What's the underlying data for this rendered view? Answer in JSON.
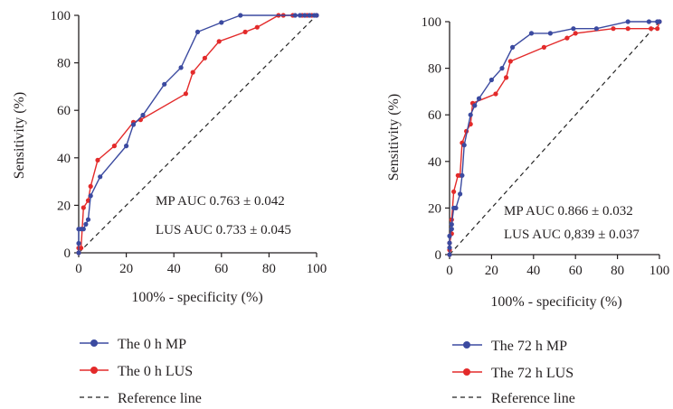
{
  "colors": {
    "mp": "#3b4aa0",
    "lus": "#e32a2a",
    "reference": "#222222",
    "axis": "#231f20"
  },
  "chart_data": [
    {
      "type": "line",
      "xlabel": "100% - specificity (%)",
      "ylabel": "Sensitivity (%)",
      "xlim": [
        0,
        100
      ],
      "ylim": [
        0,
        100
      ],
      "x_ticks": [
        "0",
        "20",
        "40",
        "60",
        "80",
        "100"
      ],
      "y_ticks": [
        "0",
        "20",
        "40",
        "60",
        "80",
        "100"
      ],
      "grid": false,
      "legend_position": "bottom-left",
      "annotations": [
        "MP AUC 0.763 ± 0.042",
        "LUS AUC 0.733 ± 0.045"
      ],
      "series": [
        {
          "name": "The 0 h MP",
          "color": "#3b4aa0",
          "marker": "circle",
          "x": [
            0,
            0,
            0,
            1,
            2,
            3,
            4,
            5,
            9,
            20,
            23,
            27,
            36,
            43,
            50,
            60,
            68,
            91,
            93,
            95,
            97,
            99,
            100
          ],
          "y": [
            0,
            4,
            10,
            10,
            10,
            12,
            14,
            24,
            32,
            45,
            54,
            58,
            71,
            78,
            93,
            97,
            100,
            100,
            100,
            100,
            100,
            100,
            100
          ]
        },
        {
          "name": "The 0 h LUS",
          "color": "#e32a2a",
          "marker": "circle",
          "x": [
            0,
            0,
            1,
            2,
            4,
            5,
            8,
            15,
            23,
            26,
            45,
            48,
            53,
            59,
            70,
            75,
            84,
            86,
            90,
            94,
            96,
            98,
            100
          ],
          "y": [
            0,
            2,
            2,
            19,
            22,
            28,
            39,
            45,
            55,
            56,
            67,
            76,
            82,
            89,
            93,
            95,
            100,
            100,
            100,
            100,
            100,
            100,
            100
          ]
        },
        {
          "name": "Reference line",
          "color": "#222222",
          "style": "dashed",
          "x": [
            0,
            100
          ],
          "y": [
            0,
            100
          ]
        }
      ]
    },
    {
      "type": "line",
      "xlabel": "100% - specificity (%)",
      "ylabel": "Sensitivity (%)",
      "xlim": [
        0,
        100
      ],
      "ylim": [
        0,
        100
      ],
      "x_ticks": [
        "0",
        "20",
        "40",
        "60",
        "80",
        "100"
      ],
      "y_ticks": [
        "0",
        "20",
        "40",
        "60",
        "80",
        "100"
      ],
      "grid": false,
      "legend_position": "bottom-left",
      "annotations": [
        "MP AUC 0.866 ± 0.032",
        "LUS AUC 0,839 ± 0.037"
      ],
      "series": [
        {
          "name": "The 72 h MP",
          "color": "#3b4aa0",
          "marker": "circle",
          "x": [
            0,
            0,
            0,
            0,
            1,
            1,
            2,
            3,
            5,
            6,
            7,
            10,
            12,
            14,
            20,
            25,
            30,
            39,
            48,
            59,
            70,
            85,
            95,
            99,
            100
          ],
          "y": [
            0,
            3,
            5,
            8,
            11,
            13,
            20,
            20,
            26,
            34,
            47,
            60,
            64,
            67,
            75,
            80,
            89,
            95,
            95,
            97,
            97,
            100,
            100,
            100,
            100
          ]
        },
        {
          "name": "The 72 h LUS",
          "color": "#e32a2a",
          "marker": "circle",
          "x": [
            0,
            0,
            0,
            1,
            1,
            2,
            4,
            5,
            6,
            8,
            10,
            11,
            22,
            27,
            29,
            45,
            56,
            60,
            78,
            85,
            96,
            99,
            100
          ],
          "y": [
            0,
            2,
            5,
            9,
            15,
            27,
            34,
            34,
            48,
            53,
            56,
            65,
            69,
            76,
            83,
            89,
            93,
            95,
            97,
            97,
            97,
            97,
            100
          ]
        },
        {
          "name": "Reference line",
          "color": "#222222",
          "style": "dashed",
          "x": [
            0,
            100
          ],
          "y": [
            0,
            100
          ]
        }
      ]
    }
  ]
}
